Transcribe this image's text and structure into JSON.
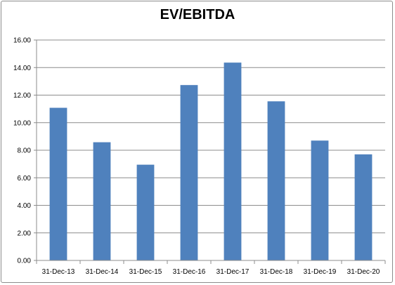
{
  "chart_data": {
    "type": "bar",
    "title": "EV/EBITDA",
    "xlabel": "",
    "ylabel": "",
    "categories": [
      "31-Dec-13",
      "31-Dec-14",
      "31-Dec-15",
      "31-Dec-16",
      "31-Dec-17",
      "31-Dec-18",
      "31-Dec-19",
      "31-Dec-20"
    ],
    "values": [
      11.08,
      8.58,
      6.95,
      12.73,
      14.36,
      11.55,
      8.7,
      7.7
    ],
    "ylim": [
      0,
      16
    ],
    "yticks": [
      "0.00",
      "2.00",
      "4.00",
      "6.00",
      "8.00",
      "10.00",
      "12.00",
      "14.00",
      "16.00"
    ],
    "grid": true,
    "legend": "none",
    "bar_color": "#4f81bd",
    "grid_color": "#8c8c8c"
  }
}
